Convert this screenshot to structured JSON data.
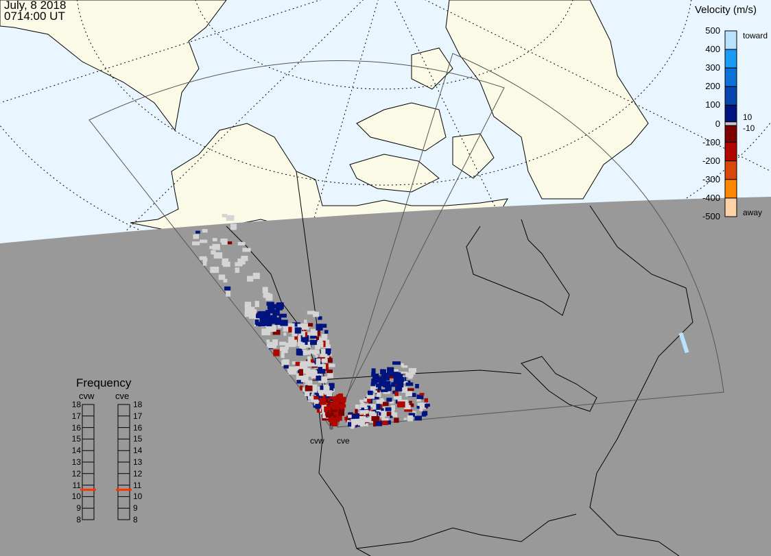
{
  "header": {
    "date": "July, 8 2018",
    "time": "0714:00 UT"
  },
  "colorbar": {
    "title": "Velocity (m/s)",
    "tick_labels": [
      "500",
      "400",
      "300",
      "200",
      "100",
      "0",
      "-100",
      "-200",
      "-300",
      "-400",
      "-500"
    ],
    "inner_labels": {
      "pos": "10",
      "neg": "-10"
    },
    "toward_label": "toward",
    "away_label": "away",
    "range": [
      -500,
      500
    ],
    "segments": [
      {
        "from": 400,
        "to": 500,
        "color": "#b8e2ff"
      },
      {
        "from": 300,
        "to": 400,
        "color": "#1a9cf5"
      },
      {
        "from": 200,
        "to": 300,
        "color": "#0a72d8"
      },
      {
        "from": 100,
        "to": 200,
        "color": "#0a46b0"
      },
      {
        "from": 10,
        "to": 100,
        "color": "#00137e"
      },
      {
        "from": -10,
        "to": 10,
        "color": "#c8c8c8"
      },
      {
        "from": -100,
        "to": -10,
        "color": "#7e0000"
      },
      {
        "from": -200,
        "to": -100,
        "color": "#b00800"
      },
      {
        "from": -300,
        "to": -200,
        "color": "#d8480a"
      },
      {
        "from": -400,
        "to": -300,
        "color": "#ff8800"
      },
      {
        "from": -500,
        "to": -400,
        "color": "#ffd2a6"
      }
    ]
  },
  "frequency": {
    "title": "Frequency",
    "radars": [
      {
        "name": "cvw",
        "value_mhz": 10.6
      },
      {
        "name": "cve",
        "value_mhz": 10.6
      }
    ],
    "ticks": [
      "18",
      "17",
      "16",
      "15",
      "14",
      "13",
      "12",
      "11",
      "10",
      "9",
      "8"
    ],
    "range": [
      8,
      18
    ],
    "marker_color": "#ff3300"
  },
  "radar_labels": {
    "cvw": "cvw",
    "cve": "cve"
  },
  "colors": {
    "ocean_day": "#eaf6ff",
    "land_day": "#fafae6",
    "night": "#999999",
    "ground_scatter": "#d4d4d4"
  }
}
